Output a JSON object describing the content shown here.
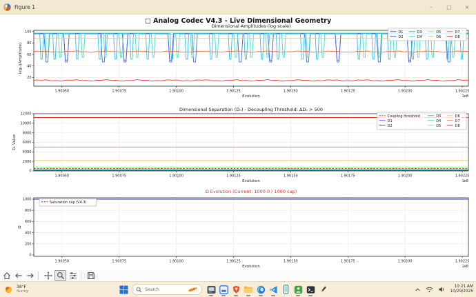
{
  "window": {
    "title": "Figure 1",
    "controls": {
      "minimize": "–",
      "maximize": "□",
      "close": "×"
    }
  },
  "figure": {
    "suptitle": "□ Analog Codec V4.3 - Live Dimensional Geometry"
  },
  "chart_data": [
    {
      "type": "line",
      "title": "Dimensional Amplitudes (log scale)",
      "title_color": "#1a1a1a",
      "xlabel": "Evolution",
      "ylabel": "log₁₀(Amplitude)",
      "x_offset_label": "1e8",
      "xlim": [
        1.900377,
        1.902277
      ],
      "x_tick_labels": [
        "1.90050",
        "1.90075",
        "1.90100",
        "1.90125",
        "1.90150",
        "1.90175",
        "1.90200",
        "1.90225"
      ],
      "ylim": [
        5,
        102
      ],
      "y_ticks": [
        20,
        40,
        60,
        80,
        100
      ],
      "grid": true,
      "legend": {
        "loc": "upper right",
        "ncol": 4
      },
      "legend_order": [
        "D1",
        "D2",
        "D3",
        "D4",
        "D5",
        "D6",
        "D7",
        "D8"
      ],
      "series": [
        {
          "name": "D1",
          "color": "#8257e6",
          "kind": "telegraph",
          "y_high": 96.5,
          "y_low": 50,
          "hw": 0.0065,
          "dips": [
            0.075,
            0.21,
            0.315,
            0.545,
            0.7,
            0.865
          ]
        },
        {
          "name": "D2",
          "color": "#3b6be3",
          "kind": "telegraph",
          "y_high": 96.5,
          "y_low": 47,
          "hw": 0.0065,
          "dips": [
            0.03,
            0.075,
            0.16,
            0.21,
            0.315,
            0.37,
            0.475,
            0.545,
            0.63,
            0.7,
            0.795,
            0.865,
            0.955
          ]
        },
        {
          "name": "D3",
          "color": "#2ec0e7",
          "kind": "telegraph",
          "y_high": 96.5,
          "y_low": 52,
          "hw": 0.0045,
          "dips": [
            0.018,
            0.048,
            0.1,
            0.152,
            0.188,
            0.225,
            0.262,
            0.318,
            0.352,
            0.408,
            0.452,
            0.488,
            0.525,
            0.562,
            0.618,
            0.652,
            0.748,
            0.782,
            0.818,
            0.872,
            0.905,
            0.952,
            0.985
          ]
        },
        {
          "name": "D4",
          "color": "#45dcc2",
          "kind": "telegraph",
          "y_high": 95.5,
          "y_low": 55,
          "hw": 0.0045,
          "dips": [
            0.031,
            0.061,
            0.113,
            0.165,
            0.201,
            0.238,
            0.275,
            0.331,
            0.365,
            0.421,
            0.465,
            0.501,
            0.538,
            0.575,
            0.631,
            0.665,
            0.761,
            0.795,
            0.831,
            0.885,
            0.918,
            0.965
          ]
        },
        {
          "name": "D5",
          "color": "#98ee90",
          "kind": "hline",
          "y": 98.2
        },
        {
          "name": "D6",
          "color": "#edcb7d",
          "kind": "hline",
          "y": 88
        },
        {
          "name": "D7",
          "color": "#f46a3d",
          "kind": "hline",
          "y": 65,
          "wavy": true
        },
        {
          "name": "D8",
          "color": "#e93a34",
          "kind": "hline",
          "y": 15,
          "wavy": true
        }
      ]
    },
    {
      "type": "line",
      "title": "Dimensional Separation (Dₙ) - Decoupling Threshold: ΔDₙ > 500",
      "title_color": "#1a1a1a",
      "xlabel": "Evolution",
      "ylabel": "Dₙ Value",
      "x_offset_label": "1e8",
      "xlim": [
        1.900377,
        1.902277
      ],
      "x_tick_labels": [
        "1.90050",
        "1.90075",
        "1.90100",
        "1.90125",
        "1.90150",
        "1.90175",
        "1.90200",
        "1.90225"
      ],
      "ylim": [
        0,
        12000
      ],
      "y_ticks": [
        0,
        2000,
        4000,
        6000,
        8000,
        10000,
        12000
      ],
      "grid": true,
      "legend": {
        "loc": "upper right",
        "ncol": 4
      },
      "legend_order": [
        "Coupling threshold",
        "D1",
        "D2",
        "D3",
        "D4",
        "D5",
        "D6",
        "D7",
        "D8"
      ],
      "series": [
        {
          "name": "Coupling threshold",
          "color": "#d0453f",
          "kind": "hline",
          "y": 500,
          "dash": true
        },
        {
          "name": "D1",
          "color": "#8257e6",
          "kind": "hline",
          "y": 60
        },
        {
          "name": "D2",
          "color": "#3b6be3",
          "kind": "hline",
          "y": 130
        },
        {
          "name": "D3",
          "color": "#2ec0e7",
          "kind": "hline",
          "y": 300
        },
        {
          "name": "D4",
          "color": "#45dcc2",
          "kind": "hline",
          "y": 260
        },
        {
          "name": "D5",
          "color": "#98ee90",
          "kind": "hline",
          "y": 800
        },
        {
          "name": "D6",
          "color": "#edcb7d",
          "kind": "hline",
          "y": 2200
        },
        {
          "name": "D7",
          "color": "#f4824f",
          "kind": "hline",
          "y": 5000
        },
        {
          "name": "D8",
          "color": "#e93a34",
          "kind": "hline",
          "y": 11200
        }
      ]
    },
    {
      "type": "line",
      "title": "Ω Evolution (Current: 1000.0 / 1000 cap)",
      "title_color": "#e03131",
      "xlabel": "Evolution",
      "ylabel": "Ω",
      "x_offset_label": "1e8",
      "xlim": [
        1.900377,
        1.902277
      ],
      "x_tick_labels": [
        "1.90050",
        "1.90075",
        "1.90100",
        "1.90125",
        "1.90150",
        "1.90175",
        "1.90200",
        "1.90225"
      ],
      "ylim": [
        -25,
        1025
      ],
      "y_ticks": [
        0,
        200,
        400,
        600,
        800,
        1000
      ],
      "grid": true,
      "legend": {
        "loc": "upper left",
        "ncol": 1
      },
      "legend_order": [
        "Saturation cap (V4.3)"
      ],
      "series": [
        {
          "name": "Saturation cap (V4.3)",
          "color": "#d62728",
          "kind": "hline",
          "y": 1000,
          "dash": true
        },
        {
          "name": "Ω",
          "color": "#2c3ab0",
          "kind": "hline",
          "y": 1000,
          "legend": false
        }
      ]
    }
  ],
  "toolbar": {
    "buttons": [
      "home",
      "back",
      "forward",
      "pan",
      "zoom",
      "configure-subplots",
      "save"
    ],
    "active_tool": "zoom"
  },
  "taskbar": {
    "weather": {
      "temperature": "38°F",
      "condition": "Sunny"
    },
    "search": {
      "placeholder": "Search"
    },
    "apps": [
      "window-app",
      "frame-app",
      "brave-browser",
      "file-explorer",
      "edge-browser",
      "vscode",
      "phone-link",
      "xbox-app",
      "terminal",
      "pen-app"
    ],
    "tray": {
      "time": "10:21 AM",
      "date": "10/29/2025"
    }
  }
}
